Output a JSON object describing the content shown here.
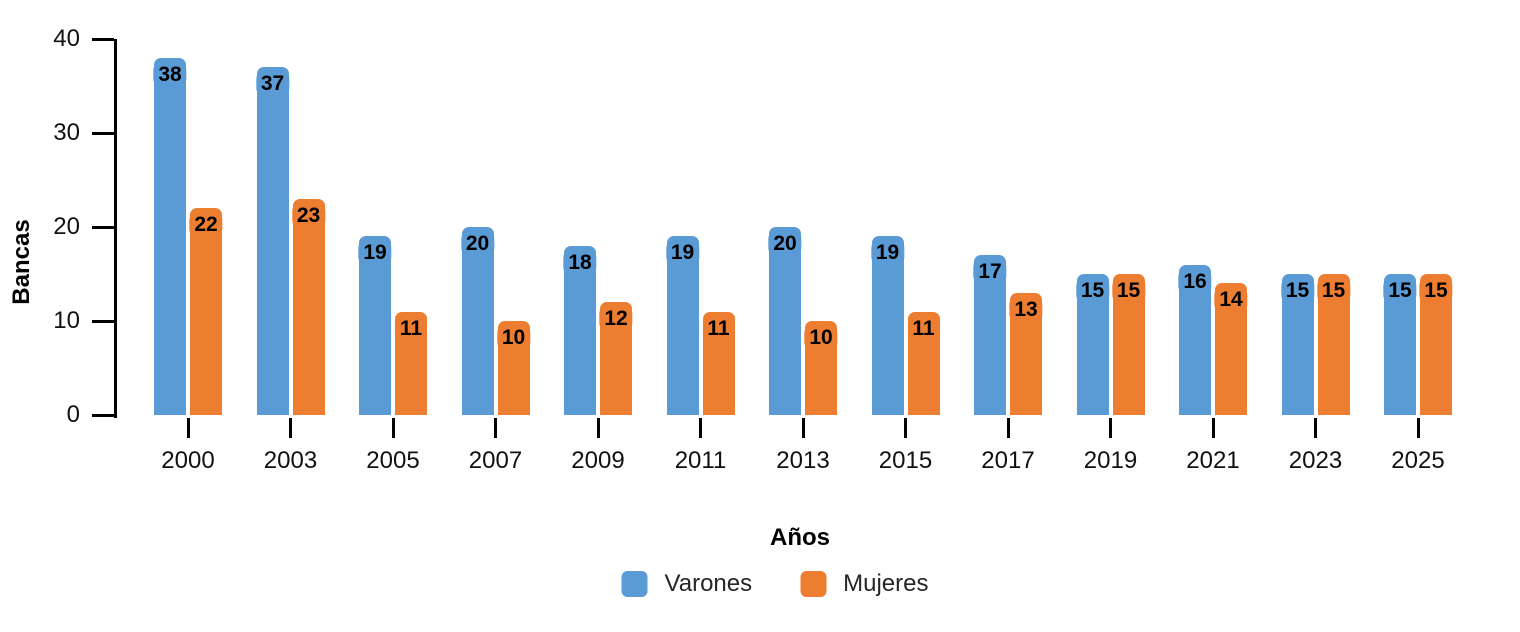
{
  "chart_data": {
    "type": "bar",
    "title": "",
    "xlabel": "Años",
    "ylabel": "Bancas",
    "categories": [
      "2000",
      "2003",
      "2005",
      "2007",
      "2009",
      "2011",
      "2013",
      "2015",
      "2017",
      "2019",
      "2021",
      "2023",
      "2025"
    ],
    "series": [
      {
        "name": "Varones",
        "color": "#5B9BD5",
        "values": [
          38,
          37,
          19,
          20,
          18,
          19,
          20,
          19,
          17,
          15,
          16,
          15,
          15
        ]
      },
      {
        "name": "Mujeres",
        "color": "#ED7D31",
        "values": [
          22,
          23,
          11,
          10,
          12,
          11,
          10,
          11,
          13,
          15,
          14,
          15,
          15
        ]
      }
    ],
    "ylim": [
      0,
      40
    ],
    "yticks": [
      0,
      10,
      20,
      30,
      40
    ],
    "grid": false,
    "legend_position": "bottom",
    "value_labels": "inside-top",
    "text_color": "#000000"
  }
}
